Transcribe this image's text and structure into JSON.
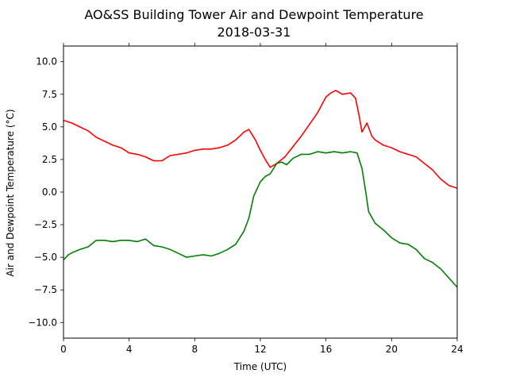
{
  "chart_data": {
    "type": "line",
    "title": "AO&SS Building Tower Air and Dewpoint Temperature",
    "subtitle": "2018-03-31",
    "xlabel": "Time (UTC)",
    "ylabel": "Air and Dewpoint Temperature (°C)",
    "xlim": [
      0,
      24
    ],
    "ylim": [
      -11.2,
      11.2
    ],
    "xticks": [
      0,
      4,
      8,
      12,
      16,
      20,
      24
    ],
    "yticks": [
      -10.0,
      -7.5,
      -5.0,
      -2.5,
      0.0,
      2.5,
      5.0,
      7.5,
      10.0
    ],
    "grid": false,
    "series": [
      {
        "color": "#ff0000",
        "x": [
          0,
          0.5,
          1,
          1.5,
          2,
          2.5,
          3,
          3.5,
          4,
          4.5,
          5,
          5.5,
          6,
          6.5,
          7,
          7.5,
          8,
          8.5,
          9,
          9.5,
          10,
          10.5,
          11,
          11.3,
          11.7,
          12,
          12.3,
          12.6,
          13,
          13.5,
          14,
          14.5,
          15,
          15.5,
          16,
          16.3,
          16.6,
          17,
          17.5,
          17.8,
          18,
          18.2,
          18.5,
          18.8,
          19,
          19.5,
          20,
          20.5,
          21,
          21.5,
          22,
          22.5,
          23,
          23.5,
          24
        ],
        "y": [
          5.5,
          5.3,
          5.0,
          4.7,
          4.2,
          3.9,
          3.6,
          3.4,
          3.0,
          2.9,
          2.7,
          2.4,
          2.4,
          2.8,
          2.9,
          3.0,
          3.2,
          3.3,
          3.3,
          3.4,
          3.6,
          4.0,
          4.6,
          4.8,
          4.0,
          3.2,
          2.5,
          1.9,
          2.2,
          2.7,
          3.5,
          4.3,
          5.2,
          6.1,
          7.3,
          7.6,
          7.8,
          7.5,
          7.6,
          7.2,
          6.0,
          4.6,
          5.3,
          4.3,
          4.0,
          3.6,
          3.4,
          3.1,
          2.9,
          2.7,
          2.2,
          1.7,
          1.0,
          0.5,
          0.3
        ]
      },
      {
        "color": "#008000",
        "x": [
          0,
          0.3,
          0.6,
          1,
          1.5,
          2,
          2.5,
          3,
          3.5,
          4,
          4.5,
          5,
          5.5,
          6,
          6.5,
          7,
          7.5,
          8,
          8.5,
          9,
          9.5,
          10,
          10.5,
          11,
          11.3,
          11.6,
          12,
          12.3,
          12.6,
          13,
          13.3,
          13.6,
          14,
          14.5,
          15,
          15.5,
          16,
          16.5,
          17,
          17.5,
          17.9,
          18.2,
          18.4,
          18.6,
          19,
          19.5,
          20,
          20.5,
          21,
          21.5,
          22,
          22.5,
          23,
          23.5,
          24
        ],
        "y": [
          -5.2,
          -4.8,
          -4.6,
          -4.4,
          -4.2,
          -3.7,
          -3.7,
          -3.8,
          -3.7,
          -3.7,
          -3.8,
          -3.6,
          -4.1,
          -4.2,
          -4.4,
          -4.7,
          -5.0,
          -4.9,
          -4.8,
          -4.9,
          -4.7,
          -4.4,
          -4.0,
          -3.0,
          -2.0,
          -0.3,
          0.8,
          1.2,
          1.4,
          2.2,
          2.3,
          2.1,
          2.6,
          2.9,
          2.9,
          3.1,
          3.0,
          3.1,
          3.0,
          3.1,
          3.0,
          1.8,
          0.2,
          -1.5,
          -2.4,
          -2.9,
          -3.5,
          -3.9,
          -4.0,
          -4.4,
          -5.1,
          -5.4,
          -5.9,
          -6.6,
          -7.3
        ]
      }
    ]
  }
}
